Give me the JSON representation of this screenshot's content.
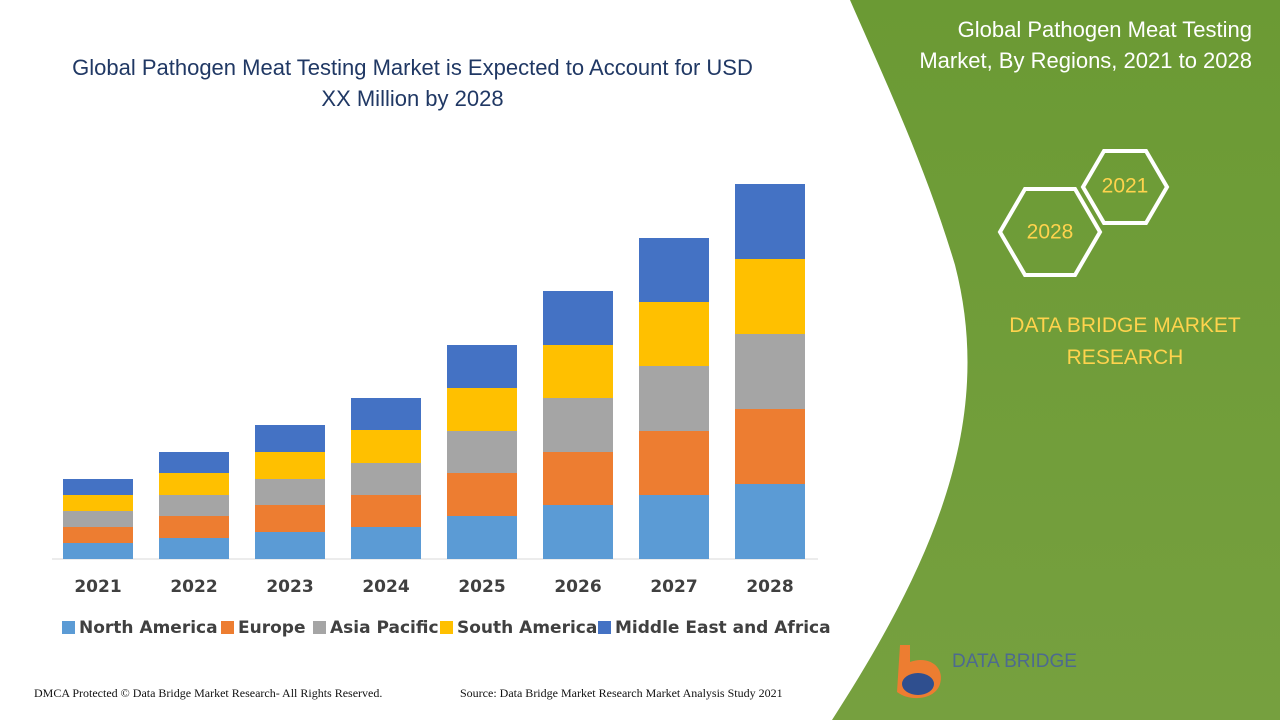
{
  "chart_data": {
    "type": "stacked-bar",
    "title": "Global Pathogen Meat Testing Market is Expected to Account for USD XX Million by 2028",
    "categories": [
      "2021",
      "2022",
      "2023",
      "2024",
      "2025",
      "2026",
      "2027",
      "2028"
    ],
    "series": [
      {
        "name": "North America",
        "color": "#5b9bd5",
        "values": [
          16,
          21,
          27,
          32,
          43,
          54,
          64,
          75
        ]
      },
      {
        "name": "Europe",
        "color": "#ed7d31",
        "values": [
          16,
          22,
          27,
          32,
          43,
          53,
          64,
          75
        ]
      },
      {
        "name": "Asia Pacific",
        "color": "#a5a5a5",
        "values": [
          16,
          21,
          26,
          32,
          42,
          54,
          65,
          75
        ]
      },
      {
        "name": "South America",
        "color": "#ffc000",
        "values": [
          16,
          22,
          27,
          33,
          43,
          53,
          64,
          75
        ]
      },
      {
        "name": "Middle East and Africa",
        "color": "#4472c4",
        "values": [
          16,
          21,
          27,
          32,
          43,
          54,
          64,
          75
        ]
      }
    ],
    "legend": "bottom"
  },
  "panel": {
    "title": "Global Pathogen Meat Testing Market, By Regions, 2021 to 2028",
    "hexagons": [
      "2021",
      "2028"
    ],
    "brand": "DATA BRIDGE MARKET RESEARCH",
    "logo_text": "DATA BRIDGE"
  },
  "footer": {
    "left": "DMCA Protected © Data Bridge Market Research- All Rights Reserved.",
    "right": "Source: Data Bridge Market Research Market Analysis Study 2021"
  }
}
